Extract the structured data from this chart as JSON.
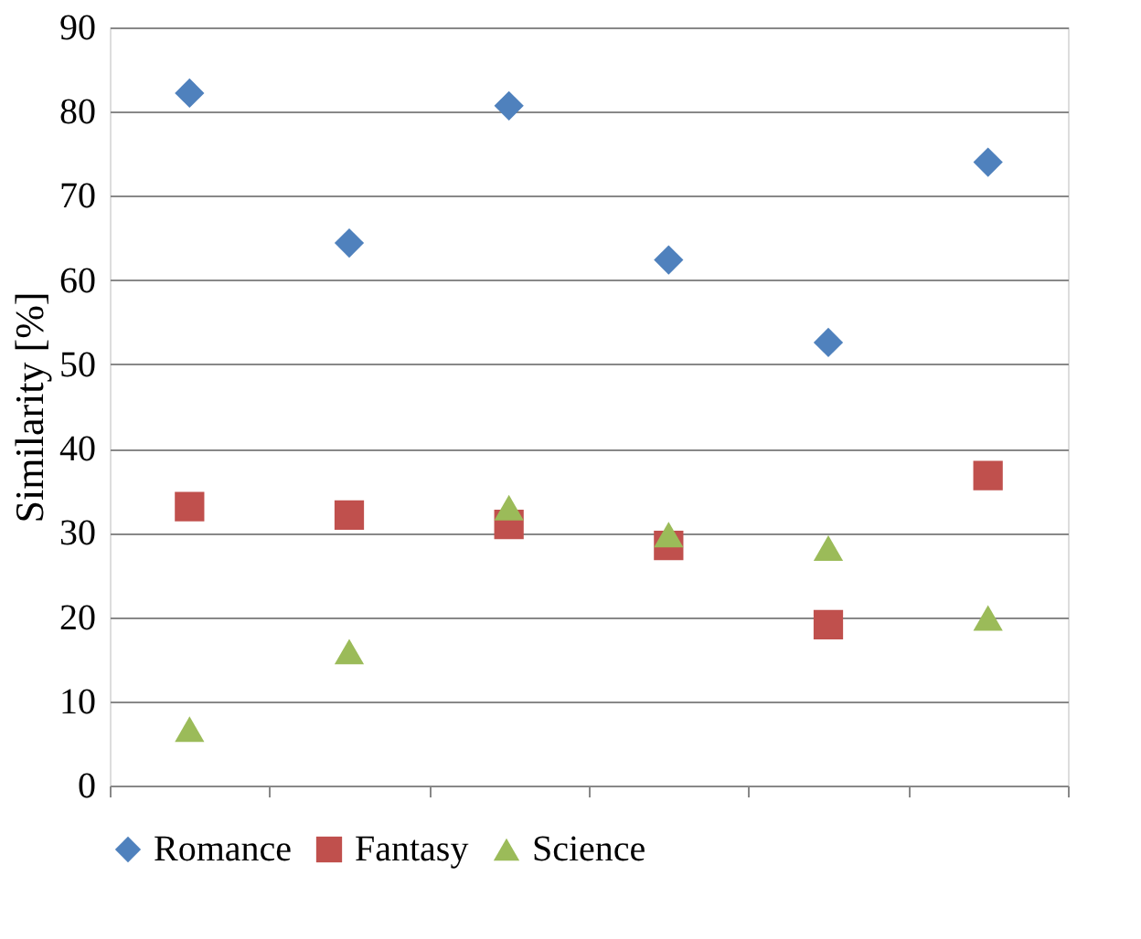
{
  "chart_data": {
    "type": "scatter",
    "ylabel": "Similarity [%]",
    "categories": [
      null,
      null,
      null,
      null,
      null,
      null
    ],
    "series": [
      {
        "name": "Romance",
        "color": "#4f81bd",
        "marker": "diamond",
        "values": [
          82.2,
          64.4,
          80.7,
          62.4,
          52.6,
          74.0
        ]
      },
      {
        "name": "Fantasy",
        "color": "#c0504d",
        "marker": "square",
        "values": [
          33.1,
          32.1,
          31.0,
          28.5,
          19.1,
          36.8
        ]
      },
      {
        "name": "Science",
        "color": "#9bbb59",
        "marker": "triangle",
        "values": [
          6.7,
          15.9,
          33.0,
          29.8,
          28.2,
          19.9
        ]
      }
    ],
    "ylim": [
      0,
      90
    ],
    "yticks": [
      0,
      10,
      20,
      30,
      40,
      50,
      60,
      70,
      80,
      90
    ],
    "grid": "y",
    "legend": "bottom",
    "tick_labels": "y"
  }
}
